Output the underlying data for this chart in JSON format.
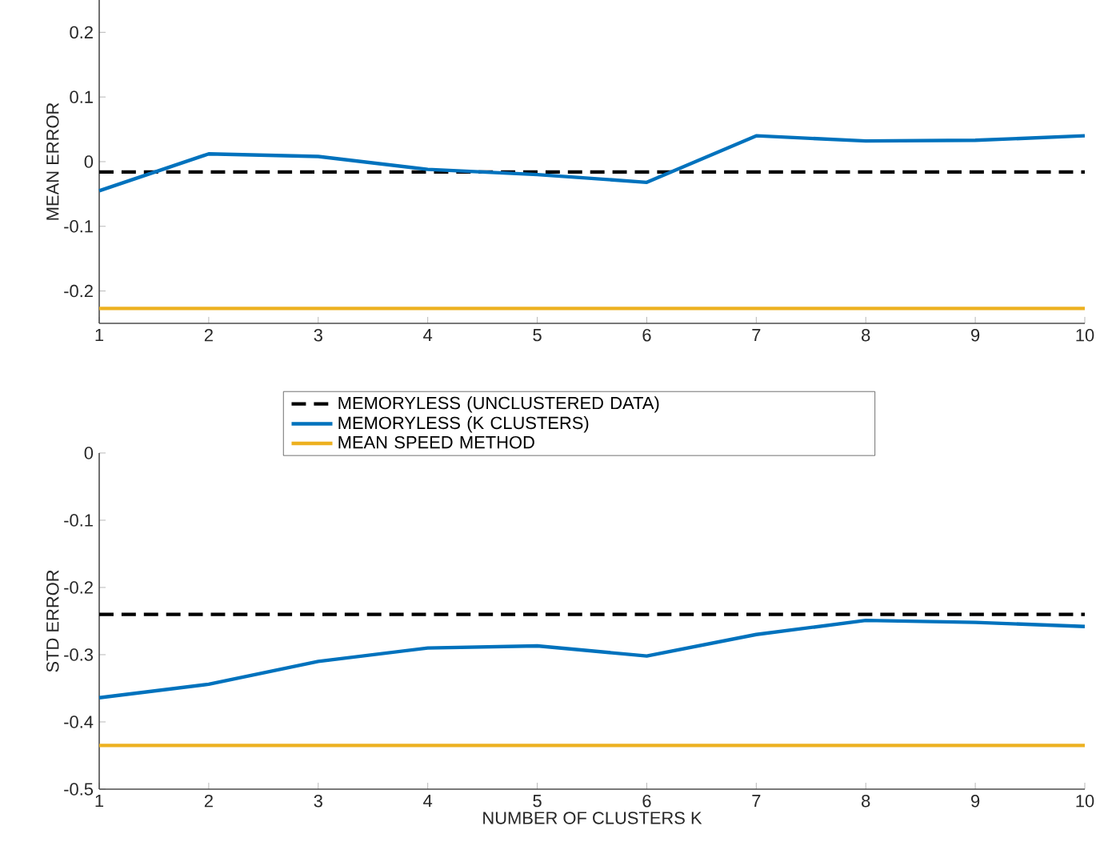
{
  "chart_data": [
    {
      "type": "line",
      "ylabel": "MEAN ERROR",
      "x": [
        1,
        2,
        3,
        4,
        5,
        6,
        7,
        8,
        9,
        10
      ],
      "xlim": [
        1,
        10
      ],
      "xticks": [
        1,
        2,
        3,
        4,
        5,
        6,
        7,
        8,
        9,
        10
      ],
      "ylim": [
        -0.25,
        0.25
      ],
      "yticks": [
        -0.2,
        -0.1,
        0,
        0.1,
        0.2
      ],
      "legend": "bottom",
      "series": [
        {
          "name": "MEMORYLESS (UNCLUSTERED DATA)",
          "color": "#000000",
          "line_style": "dashed",
          "values": [
            -0.016,
            -0.016,
            -0.016,
            -0.016,
            -0.016,
            -0.016,
            -0.016,
            -0.016,
            -0.016,
            -0.016
          ]
        },
        {
          "name": "MEMORYLESS (K CLUSTERS)",
          "color": "#0072bd",
          "line_style": "solid",
          "values": [
            -0.045,
            0.012,
            0.008,
            -0.012,
            -0.02,
            -0.032,
            0.04,
            0.032,
            0.033,
            0.04
          ]
        },
        {
          "name": "MEAN SPEED METHOD",
          "color": "#edb120",
          "line_style": "solid",
          "values": [
            -0.227,
            -0.227,
            -0.227,
            -0.227,
            -0.227,
            -0.227,
            -0.227,
            -0.227,
            -0.227,
            -0.227
          ]
        }
      ]
    },
    {
      "type": "line",
      "xlabel": "NUMBER OF CLUSTERS K",
      "ylabel": "STD ERROR",
      "x": [
        1,
        2,
        3,
        4,
        5,
        6,
        7,
        8,
        9,
        10
      ],
      "xlim": [
        1,
        10
      ],
      "xticks": [
        1,
        2,
        3,
        4,
        5,
        6,
        7,
        8,
        9,
        10
      ],
      "ylim": [
        -0.5,
        0
      ],
      "yticks": [
        -0.5,
        -0.4,
        -0.3,
        -0.2,
        -0.1,
        0
      ],
      "series": [
        {
          "color": "#000000",
          "line_style": "dashed",
          "values": [
            -0.24,
            -0.24,
            -0.24,
            -0.24,
            -0.24,
            -0.24,
            -0.24,
            -0.24,
            -0.24,
            -0.24
          ]
        },
        {
          "color": "#0072bd",
          "line_style": "solid",
          "values": [
            -0.364,
            -0.344,
            -0.31,
            -0.29,
            -0.287,
            -0.302,
            -0.27,
            -0.249,
            -0.252,
            -0.258
          ]
        },
        {
          "color": "#edb120",
          "line_style": "solid",
          "values": [
            -0.435,
            -0.435,
            -0.435,
            -0.435,
            -0.435,
            -0.435,
            -0.435,
            -0.435,
            -0.435,
            -0.435
          ]
        }
      ]
    }
  ]
}
